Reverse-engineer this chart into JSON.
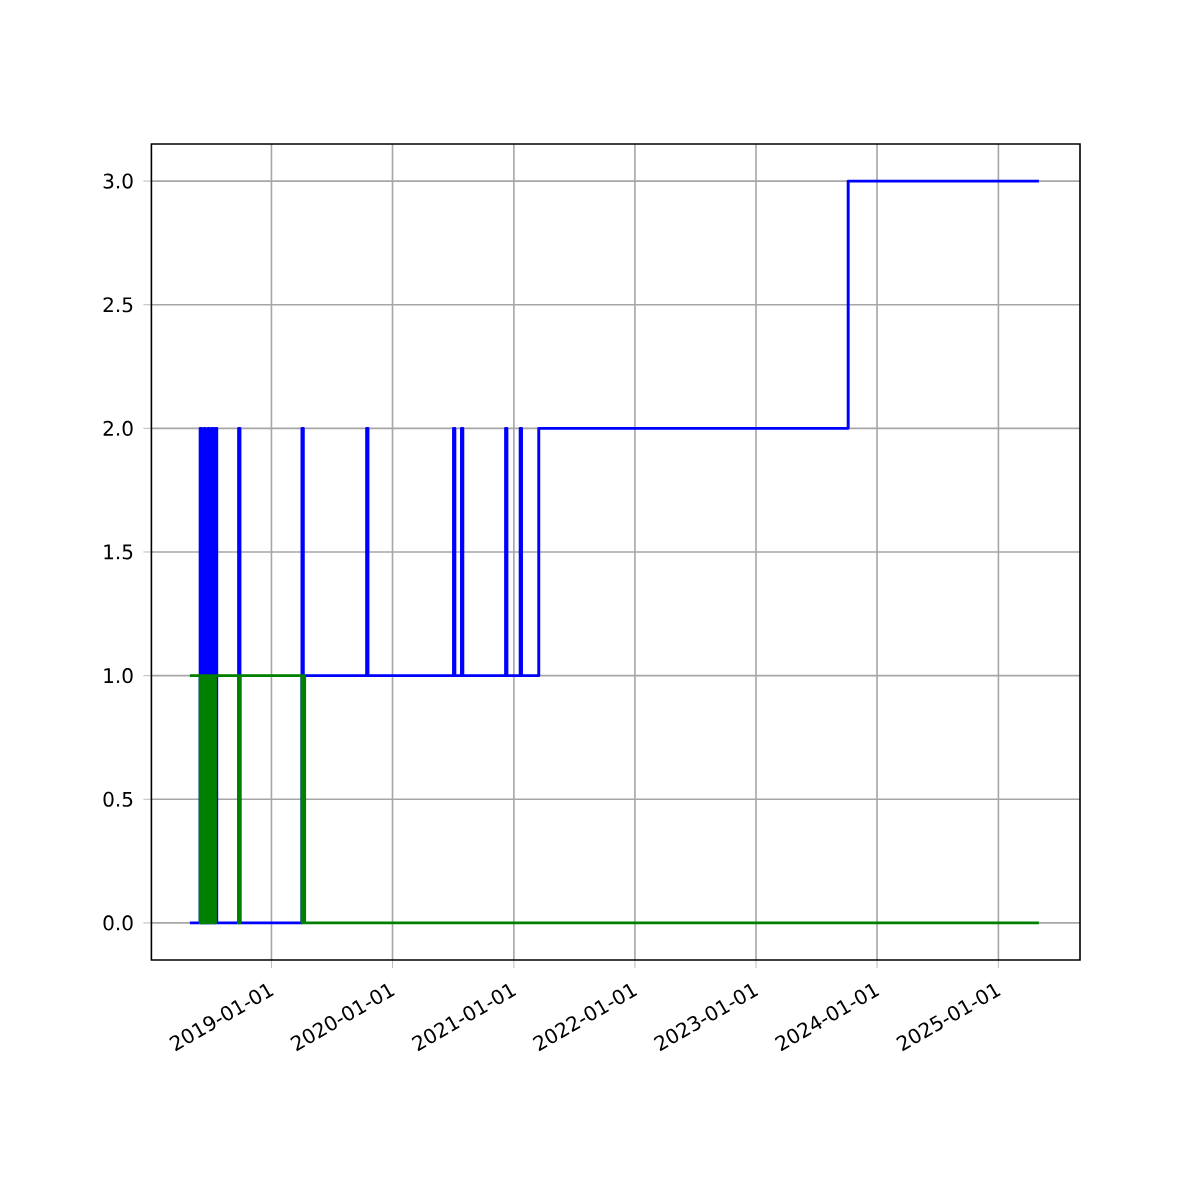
{
  "chart_data": {
    "type": "step",
    "xlim": [
      "2018-01-04",
      "2025-09-04"
    ],
    "ylim": [
      -0.15,
      3.15
    ],
    "xticks": [
      "2019-01-01",
      "2020-01-01",
      "2021-01-01",
      "2022-01-01",
      "2023-01-01",
      "2024-01-01",
      "2025-01-01"
    ],
    "yticks": [
      {
        "value": 0,
        "label": "0.0"
      },
      {
        "value": 0.5,
        "label": "0.5"
      },
      {
        "value": 1,
        "label": "1.0"
      },
      {
        "value": 1.5,
        "label": "1.5"
      },
      {
        "value": 2,
        "label": "2.0"
      },
      {
        "value": 2.5,
        "label": "2.5"
      },
      {
        "value": 3,
        "label": "3.0"
      }
    ],
    "grid": true,
    "series": [
      {
        "color": "#0000ff",
        "x": [
          "2018-04-30",
          "2018-05-31",
          "2018-06-04",
          "2018-06-12",
          "2018-06-16",
          "2018-06-24",
          "2018-06-28",
          "2018-07-06",
          "2018-07-10",
          "2018-07-16",
          "2018-07-20",
          "2018-09-24",
          "2018-09-28",
          "2019-04-03",
          "2019-04-07",
          "2019-10-15",
          "2019-10-19",
          "2020-07-03",
          "2020-07-07",
          "2020-07-27",
          "2020-07-31",
          "2020-12-07",
          "2020-12-11",
          "2021-01-20",
          "2021-01-24",
          "2021-03-17",
          "2023-10-06",
          "2025-05-03"
        ],
        "values": [
          0,
          2,
          0,
          2,
          0,
          2,
          0,
          2,
          0,
          2,
          0,
          2,
          0,
          2,
          1,
          2,
          1,
          2,
          1,
          2,
          1,
          2,
          1,
          2,
          1,
          2,
          3,
          3
        ]
      },
      {
        "color": "#008000",
        "x": [
          "2018-04-30",
          "2018-05-31",
          "2018-06-06",
          "2018-06-12",
          "2018-06-18",
          "2018-06-24",
          "2018-07-02",
          "2018-07-10",
          "2018-07-16",
          "2018-09-24",
          "2018-09-28",
          "2019-04-03",
          "2019-04-07",
          "2019-04-11",
          "2025-05-03"
        ],
        "values": [
          1,
          0,
          1,
          0,
          1,
          0,
          1,
          0,
          1,
          0,
          1,
          0,
          1,
          0,
          0
        ]
      }
    ]
  }
}
